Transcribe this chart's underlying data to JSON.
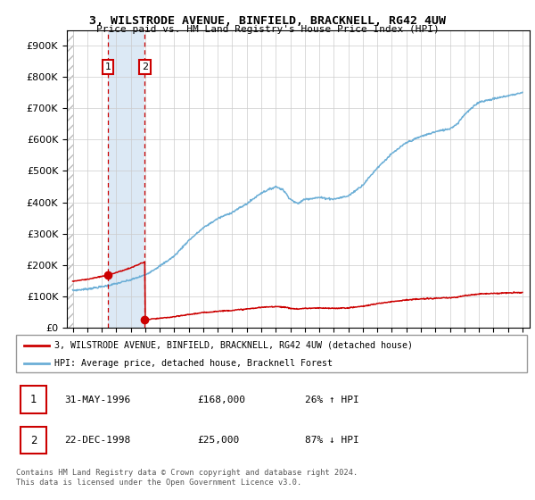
{
  "title": "3, WILSTRODE AVENUE, BINFIELD, BRACKNELL, RG42 4UW",
  "subtitle": "Price paid vs. HM Land Registry's House Price Index (HPI)",
  "transactions": [
    {
      "t": 1996.417,
      "price": 168000,
      "label": "1"
    },
    {
      "t": 1998.972,
      "price": 25000,
      "label": "2"
    }
  ],
  "legend_entries": [
    "3, WILSTRODE AVENUE, BINFIELD, BRACKNELL, RG42 4UW (detached house)",
    "HPI: Average price, detached house, Bracknell Forest"
  ],
  "table_rows": [
    {
      "num": "1",
      "date": "31-MAY-1996",
      "price": "£168,000",
      "change": "26% ↑ HPI"
    },
    {
      "num": "2",
      "date": "22-DEC-1998",
      "price": "£25,000",
      "change": "87% ↓ HPI"
    }
  ],
  "footnote": "Contains HM Land Registry data © Crown copyright and database right 2024.\nThis data is licensed under the Open Government Licence v3.0.",
  "hpi_color": "#6baed6",
  "price_color": "#cc0000",
  "ylim": [
    0,
    950000
  ],
  "yticks": [
    0,
    100000,
    200000,
    300000,
    400000,
    500000,
    600000,
    700000,
    800000,
    900000
  ],
  "xlim_start": 1993.6,
  "xlim_end": 2025.5,
  "hatch_end": 1994.0,
  "highlight_bg": "#dce9f5",
  "vline_color": "#cc0000",
  "hpi_knots": [
    [
      1994.0,
      118000
    ],
    [
      1995.0,
      123000
    ],
    [
      1996.0,
      130000
    ],
    [
      1997.0,
      140000
    ],
    [
      1998.0,
      152000
    ],
    [
      1999.0,
      168000
    ],
    [
      2000.0,
      196000
    ],
    [
      2001.0,
      228000
    ],
    [
      2002.0,
      278000
    ],
    [
      2003.0,
      318000
    ],
    [
      2004.0,
      348000
    ],
    [
      2005.0,
      368000
    ],
    [
      2006.0,
      395000
    ],
    [
      2007.0,
      430000
    ],
    [
      2008.0,
      450000
    ],
    [
      2008.5,
      440000
    ],
    [
      2009.0,
      410000
    ],
    [
      2009.5,
      395000
    ],
    [
      2010.0,
      410000
    ],
    [
      2011.0,
      415000
    ],
    [
      2012.0,
      410000
    ],
    [
      2013.0,
      420000
    ],
    [
      2014.0,
      455000
    ],
    [
      2015.0,
      510000
    ],
    [
      2016.0,
      555000
    ],
    [
      2017.0,
      590000
    ],
    [
      2018.0,
      610000
    ],
    [
      2019.0,
      625000
    ],
    [
      2020.0,
      635000
    ],
    [
      2020.5,
      650000
    ],
    [
      2021.0,
      680000
    ],
    [
      2022.0,
      720000
    ],
    [
      2023.0,
      730000
    ],
    [
      2024.0,
      740000
    ],
    [
      2025.0,
      750000
    ]
  ]
}
